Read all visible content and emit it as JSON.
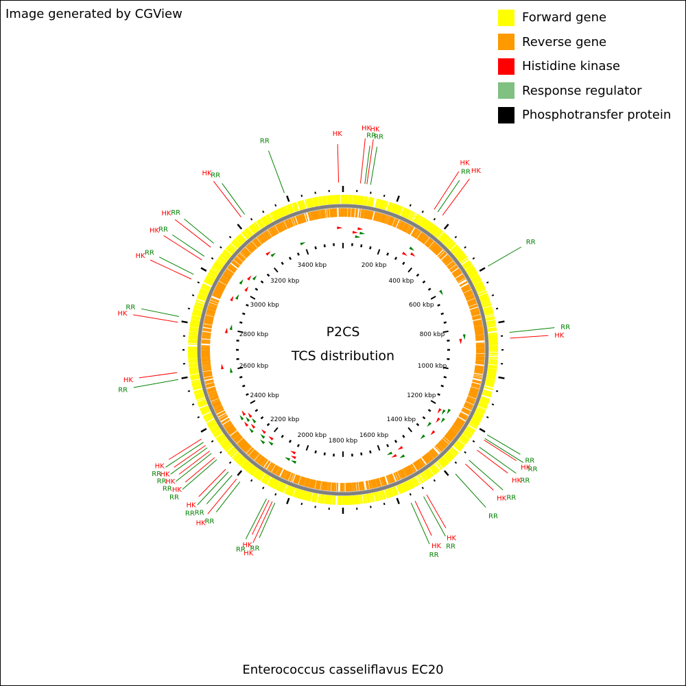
{
  "credit": "Image generated by CGView",
  "legend": [
    {
      "label": "Forward gene",
      "color": "#ffff00"
    },
    {
      "label": "Reverse gene",
      "color": "#ff9900"
    },
    {
      "label": "Histidine kinase",
      "color": "#ff0000"
    },
    {
      "label": "Response regulator",
      "color": "#80c080"
    },
    {
      "label": "Phosphotransfer protein",
      "color": "#000000"
    }
  ],
  "center": {
    "line1": "P2CS",
    "line2": "TCS distribution"
  },
  "organism": "Enterococcus casseliflavus EC20",
  "chart_data": {
    "type": "circular-genome-map",
    "genome_length_kbp": 3600,
    "tick_labels": [
      "200 kbp",
      "400 kbp",
      "600 kbp",
      "800 kbp",
      "1000 kbp",
      "1200 kbp",
      "1400 kbp",
      "1600 kbp",
      "1800 kbp",
      "2000 kbp",
      "2200 kbp",
      "2400 kbp",
      "2600 kbp",
      "2800 kbp",
      "3000 kbp",
      "3200 kbp",
      "3400 kbp"
    ],
    "tick_positions_kbp": [
      200,
      400,
      600,
      800,
      1000,
      1200,
      1400,
      1600,
      1800,
      2000,
      2200,
      2400,
      2600,
      2800,
      3000,
      3200,
      3400
    ],
    "colors": {
      "HK": "#ff0000",
      "RR": "#008000",
      "forward": "#ffff00",
      "reverse": "#ff9900",
      "backbone": "#808080"
    },
    "tcs_features": [
      {
        "label": "RR",
        "type": "RR",
        "kbp": 1205
      },
      {
        "label": "RR",
        "type": "RR",
        "kbp": 1220
      },
      {
        "label": "HK",
        "type": "HK",
        "kbp": 1226
      },
      {
        "label": "RR",
        "type": "RR",
        "kbp": 1255
      },
      {
        "label": "HK",
        "type": "HK",
        "kbp": 1268
      },
      {
        "label": "RR",
        "type": "RR",
        "kbp": 1312
      },
      {
        "label": "HK",
        "type": "HK",
        "kbp": 1330
      },
      {
        "label": "RR",
        "type": "RR",
        "kbp": 1378
      },
      {
        "label": "HK",
        "type": "HK",
        "kbp": 1500
      },
      {
        "label": "RR",
        "type": "RR",
        "kbp": 1512
      },
      {
        "label": "HK",
        "type": "HK",
        "kbp": 1545
      },
      {
        "label": "RR",
        "type": "RR",
        "kbp": 1560
      },
      {
        "label": "RR",
        "type": "RR",
        "kbp": 2040
      },
      {
        "label": "HK",
        "type": "HK",
        "kbp": 2050
      },
      {
        "label": "HK",
        "type": "HK",
        "kbp": 2062
      },
      {
        "label": "RR",
        "type": "RR",
        "kbp": 2072
      },
      {
        "label": "RR",
        "type": "RR",
        "kbp": 2180
      },
      {
        "label": "HK",
        "type": "HK",
        "kbp": 2195
      },
      {
        "label": "RR",
        "type": "RR",
        "kbp": 2215
      },
      {
        "label": "RR",
        "type": "RR",
        "kbp": 2232
      },
      {
        "label": "HK",
        "type": "HK",
        "kbp": 2245
      },
      {
        "label": "RR",
        "type": "RR",
        "kbp": 2290
      },
      {
        "label": "HK",
        "type": "HK",
        "kbp": 2300
      },
      {
        "label": "RR",
        "type": "RR",
        "kbp": 2318
      },
      {
        "label": "HK",
        "type": "HK",
        "kbp": 2328
      },
      {
        "label": "RR",
        "type": "RR",
        "kbp": 2342
      },
      {
        "label": "HK",
        "type": "HK",
        "kbp": 2352
      },
      {
        "label": "RR",
        "type": "RR",
        "kbp": 2365
      },
      {
        "label": "HK",
        "type": "HK",
        "kbp": 2378
      },
      {
        "label": "RR",
        "type": "RR",
        "kbp": 2598
      },
      {
        "label": "HK",
        "type": "HK",
        "kbp": 2622
      },
      {
        "label": "HK",
        "type": "HK",
        "kbp": 2795
      },
      {
        "label": "RR",
        "type": "RR",
        "kbp": 2815
      },
      {
        "label": "HK",
        "type": "HK",
        "kbp": 2950
      },
      {
        "label": "RR",
        "type": "RR",
        "kbp": 2968
      },
      {
        "label": "HK",
        "type": "HK",
        "kbp": 3025
      },
      {
        "label": "RR",
        "type": "RR",
        "kbp": 3040
      },
      {
        "label": "HK",
        "type": "HK",
        "kbp": 3078
      },
      {
        "label": "RR",
        "type": "RR",
        "kbp": 3095
      },
      {
        "label": "HK",
        "type": "HK",
        "kbp": 3225
      },
      {
        "label": "RR",
        "type": "RR",
        "kbp": 3240
      },
      {
        "label": "RR",
        "type": "RR",
        "kbp": 3395
      },
      {
        "label": "HK",
        "type": "HK",
        "kbp": 3585
      },
      {
        "label": "HK",
        "type": "HK",
        "kbp": 60
      },
      {
        "label": "RR",
        "type": "RR",
        "kbp": 75
      },
      {
        "label": "HK",
        "type": "HK",
        "kbp": 82
      },
      {
        "label": "RR",
        "type": "RR",
        "kbp": 95
      },
      {
        "label": "HK",
        "type": "HK",
        "kbp": 330
      },
      {
        "label": "RR",
        "type": "RR",
        "kbp": 345
      },
      {
        "label": "HK",
        "type": "HK",
        "kbp": 365
      },
      {
        "label": "RR",
        "type": "RR",
        "kbp": 600
      },
      {
        "label": "RR",
        "type": "RR",
        "kbp": 840
      },
      {
        "label": "HK",
        "type": "HK",
        "kbp": 860
      }
    ]
  }
}
